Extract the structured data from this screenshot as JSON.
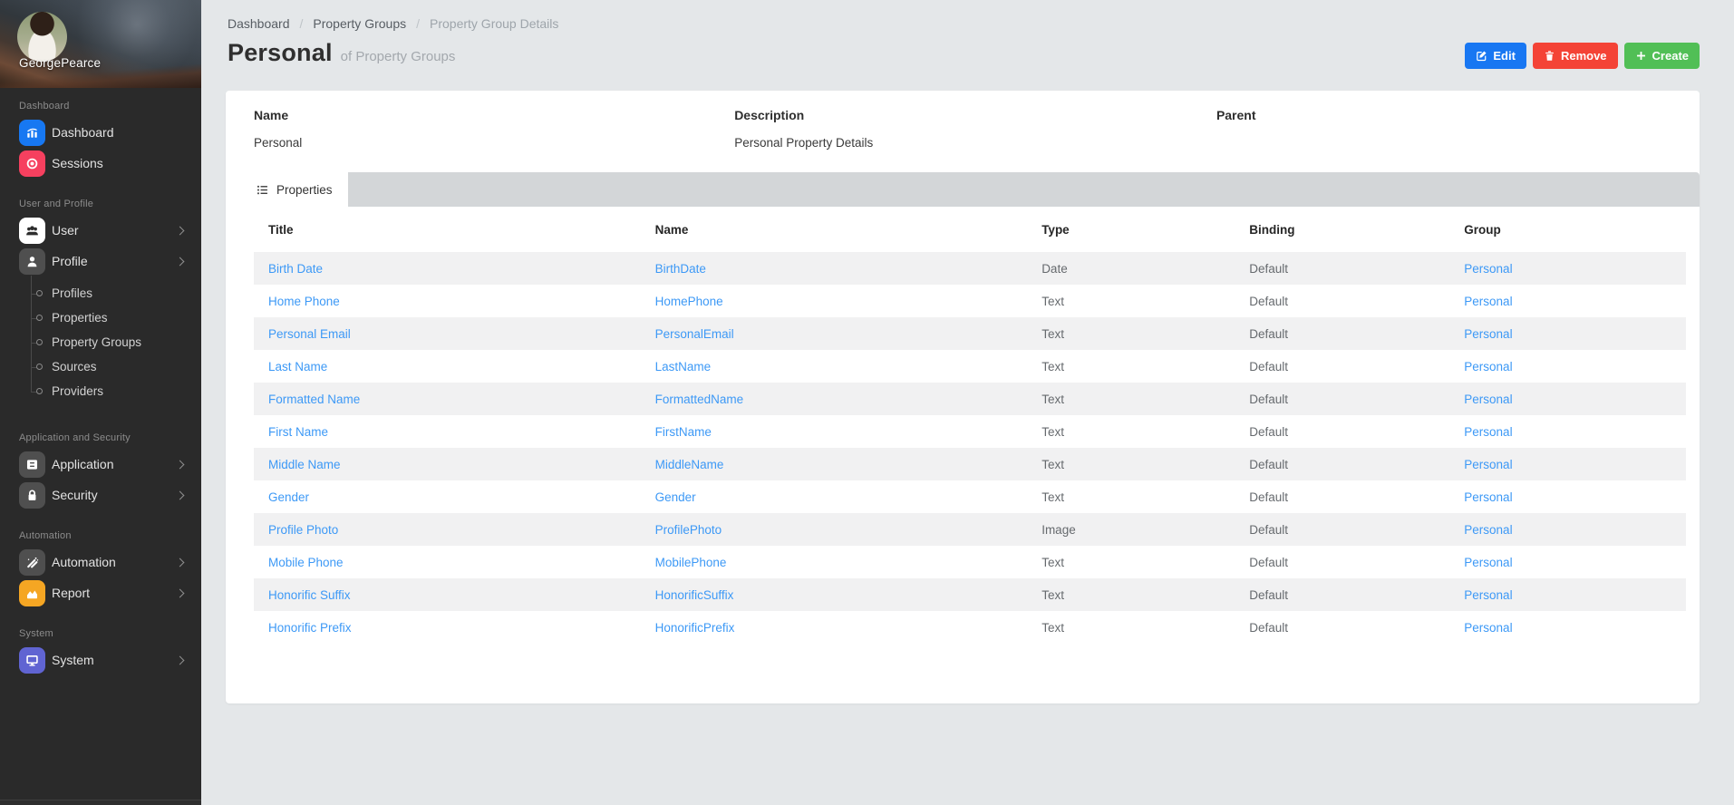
{
  "user": {
    "name": "GeorgePearce"
  },
  "sidebar": {
    "sections": [
      {
        "label": "Dashboard",
        "items": [
          {
            "label": "Dashboard",
            "icon": "dashboard",
            "icon_bg": "#1778F2",
            "icon_fg": "#FFFFFF",
            "arrow": false
          },
          {
            "label": "Sessions",
            "icon": "sessions",
            "icon_bg": "#F6405F",
            "icon_fg": "#FFFFFF",
            "arrow": false
          }
        ]
      },
      {
        "label": "User and Profile",
        "items": [
          {
            "label": "User",
            "icon": "user",
            "icon_bg": "#FFFFFF",
            "icon_fg": "#2D2D2D",
            "arrow": true
          },
          {
            "label": "Profile",
            "icon": "profile",
            "icon_bg": "#4F4F4F",
            "icon_fg": "#FFFFFF",
            "arrow": true,
            "children": [
              "Profiles",
              "Properties",
              "Property Groups",
              "Sources",
              "Providers"
            ]
          }
        ]
      },
      {
        "label": "Application and Security",
        "items": [
          {
            "label": "Application",
            "icon": "application",
            "icon_bg": "#4F4F4F",
            "icon_fg": "#FFFFFF",
            "arrow": true
          },
          {
            "label": "Security",
            "icon": "security",
            "icon_bg": "#4F4F4F",
            "icon_fg": "#FFFFFF",
            "arrow": true
          }
        ]
      },
      {
        "label": "Automation",
        "items": [
          {
            "label": "Automation",
            "icon": "automation",
            "icon_bg": "#4F4F4F",
            "icon_fg": "#FFFFFF",
            "arrow": true
          },
          {
            "label": "Report",
            "icon": "report",
            "icon_bg": "#F5A623",
            "icon_fg": "#FFFFFF",
            "arrow": true
          }
        ]
      },
      {
        "label": "System",
        "items": [
          {
            "label": "System",
            "icon": "system",
            "icon_bg": "#6064D2",
            "icon_fg": "#FFFFFF",
            "arrow": true
          }
        ]
      }
    ]
  },
  "breadcrumb": [
    "Dashboard",
    "Property Groups",
    "Property Group Details"
  ],
  "page": {
    "title": "Personal",
    "subtitle": "of Property Groups"
  },
  "actions": {
    "edit": "Edit",
    "remove": "Remove",
    "create": "Create"
  },
  "details": {
    "fields": [
      {
        "label": "Name",
        "value": "Personal"
      },
      {
        "label": "Description",
        "value": "Personal Property Details"
      },
      {
        "label": "Parent",
        "value": ""
      }
    ]
  },
  "tabs": [
    {
      "label": "Properties",
      "icon": "list",
      "active": true
    }
  ],
  "table": {
    "columns": [
      "Title",
      "Name",
      "Type",
      "Binding",
      "Group"
    ],
    "link_columns": [
      0,
      1,
      4
    ],
    "rows": [
      [
        "Birth Date",
        "BirthDate",
        "Date",
        "Default",
        "Personal"
      ],
      [
        "Home Phone",
        "HomePhone",
        "Text",
        "Default",
        "Personal"
      ],
      [
        "Personal Email",
        "PersonalEmail",
        "Text",
        "Default",
        "Personal"
      ],
      [
        "Last Name",
        "LastName",
        "Text",
        "Default",
        "Personal"
      ],
      [
        "Formatted Name",
        "FormattedName",
        "Text",
        "Default",
        "Personal"
      ],
      [
        "First Name",
        "FirstName",
        "Text",
        "Default",
        "Personal"
      ],
      [
        "Middle Name",
        "MiddleName",
        "Text",
        "Default",
        "Personal"
      ],
      [
        "Gender",
        "Gender",
        "Text",
        "Default",
        "Personal"
      ],
      [
        "Profile Photo",
        "ProfilePhoto",
        "Image",
        "Default",
        "Personal"
      ],
      [
        "Mobile Phone",
        "MobilePhone",
        "Text",
        "Default",
        "Personal"
      ],
      [
        "Honorific Suffix",
        "HonorificSuffix",
        "Text",
        "Default",
        "Personal"
      ],
      [
        "Honorific Prefix",
        "HonorificPrefix",
        "Text",
        "Default",
        "Personal"
      ]
    ]
  },
  "colors": {
    "edit_button": "#1877F2",
    "remove_button": "#F44336",
    "create_button": "#51BF56",
    "link": "#3D99F6",
    "sidebar_bg": "#2A2A2A",
    "page_bg": "#E4E7E9",
    "row_stripe": "#F1F1F2",
    "tab_strip": "#D3D6D8"
  }
}
